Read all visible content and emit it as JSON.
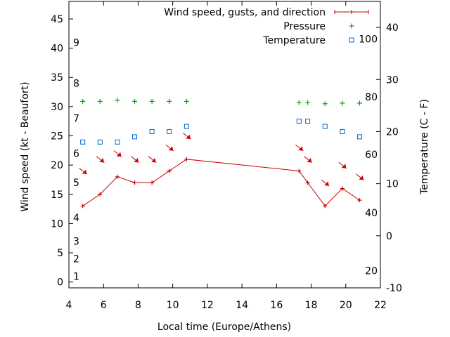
{
  "chart_data": {
    "type": "line",
    "xlabel": "Local time (Europe/Athens)",
    "ylabel": "Wind speed (kt - Beaufort)",
    "y2label": "Temperature (C - F)",
    "xlim": [
      4,
      22
    ],
    "ylim": [
      -1,
      48
    ],
    "y2lim": [
      -10,
      45
    ],
    "x_ticks": [
      4,
      6,
      8,
      10,
      12,
      14,
      16,
      18,
      20,
      22
    ],
    "y_ticks": [
      0,
      5,
      10,
      15,
      20,
      25,
      30,
      35,
      40,
      45
    ],
    "y2_ticks": [
      -10,
      0,
      10,
      20,
      30,
      40
    ],
    "beaufort_labels": [
      {
        "label": "1",
        "kt": 1
      },
      {
        "label": "2",
        "kt": 4
      },
      {
        "label": "3",
        "kt": 7
      },
      {
        "label": "4",
        "kt": 11
      },
      {
        "label": "5",
        "kt": 17
      },
      {
        "label": "6",
        "kt": 22
      },
      {
        "label": "7",
        "kt": 28
      },
      {
        "label": "8",
        "kt": 34
      },
      {
        "label": "9",
        "kt": 41
      }
    ],
    "fahrenheit_labels": [
      {
        "label": "20",
        "c": -6.7
      },
      {
        "label": "40",
        "c": 4.4
      },
      {
        "label": "60",
        "c": 15.6
      },
      {
        "label": "80",
        "c": 26.7
      },
      {
        "label": "100",
        "c": 37.8
      }
    ],
    "legend_position": "top-right",
    "series": [
      {
        "name": "Wind speed, gusts, and direction",
        "kind": "line",
        "color": "#cc0000",
        "x": [
          4.8,
          5.8,
          6.8,
          7.8,
          8.8,
          9.8,
          10.8,
          17.3,
          17.8,
          18.8,
          19.8,
          20.8
        ],
        "y": [
          13,
          15,
          18,
          17,
          17,
          19,
          21,
          19,
          17,
          13,
          16,
          14
        ],
        "arrow_y": [
          19,
          21,
          22,
          21,
          21,
          23,
          25,
          23,
          21,
          17,
          20,
          18
        ]
      },
      {
        "name": "Pressure",
        "kind": "plus",
        "color": "#00aa00",
        "x": [
          4.8,
          5.8,
          6.8,
          7.8,
          8.8,
          9.8,
          10.8,
          17.3,
          17.8,
          18.8,
          19.8,
          20.8
        ],
        "y": [
          30.9,
          30.9,
          31.1,
          30.9,
          30.9,
          30.9,
          30.9,
          30.7,
          30.7,
          30.5,
          30.6,
          30.6
        ]
      },
      {
        "name": "Temperature",
        "kind": "square",
        "color": "#0066cc",
        "axis": "y2",
        "x": [
          4.8,
          5.8,
          6.8,
          7.8,
          8.8,
          9.8,
          10.8,
          17.3,
          17.8,
          18.8,
          19.8,
          20.8
        ],
        "y": [
          18,
          18,
          18,
          19,
          20,
          20,
          21,
          22,
          22,
          21,
          20,
          19
        ]
      }
    ]
  }
}
